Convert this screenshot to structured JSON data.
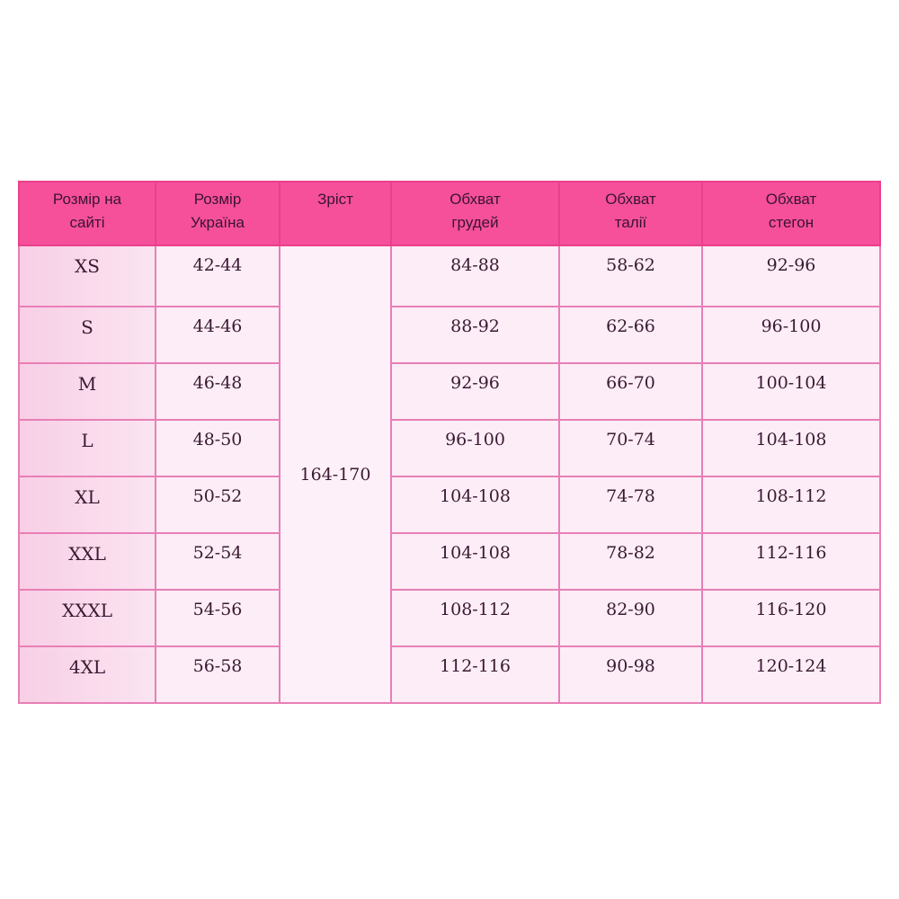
{
  "table": {
    "headers": [
      "Розмір на\nсайті",
      "Розмір\nУкраїна",
      "Зріст",
      "Обхват\nгрудей",
      "Обхват\nталії",
      "Обхват\nстегон"
    ],
    "header_lines": [
      [
        "Розмір на",
        "сайті"
      ],
      [
        "Розмір",
        "Україна"
      ],
      [
        "Зріст",
        ""
      ],
      [
        "Обхват",
        "грудей"
      ],
      [
        "Обхват",
        "талії"
      ],
      [
        "Обхват",
        "стегон"
      ]
    ],
    "height_value": "164-170",
    "rows": [
      {
        "size": "XS",
        "ua": "42-44",
        "chest": "84-88",
        "waist": "58-62",
        "hips": "92-96"
      },
      {
        "size": "S",
        "ua": "44-46",
        "chest": "88-92",
        "waist": "62-66",
        "hips": "96-100"
      },
      {
        "size": "M",
        "ua": "46-48",
        "chest": "92-96",
        "waist": "66-70",
        "hips": "100-104"
      },
      {
        "size": "L",
        "ua": "48-50",
        "chest": "96-100",
        "waist": "70-74",
        "hips": "104-108"
      },
      {
        "size": "XL",
        "ua": "50-52",
        "chest": "104-108",
        "waist": "74-78",
        "hips": "108-112"
      },
      {
        "size": "XXL",
        "ua": "52-54",
        "chest": "104-108",
        "waist": "78-82",
        "hips": "112-116"
      },
      {
        "size": "XXXL",
        "ua": "54-56",
        "chest": "108-112",
        "waist": "82-90",
        "hips": "116-120"
      },
      {
        "size": "4XL",
        "ua": "56-58",
        "chest": "112-116",
        "waist": "90-98",
        "hips": "120-124"
      }
    ],
    "colors": {
      "header_bg": "#f6509a",
      "border": "#e87fb6",
      "cell_bg": "#fcedf6",
      "text": "#3a1a33"
    }
  }
}
